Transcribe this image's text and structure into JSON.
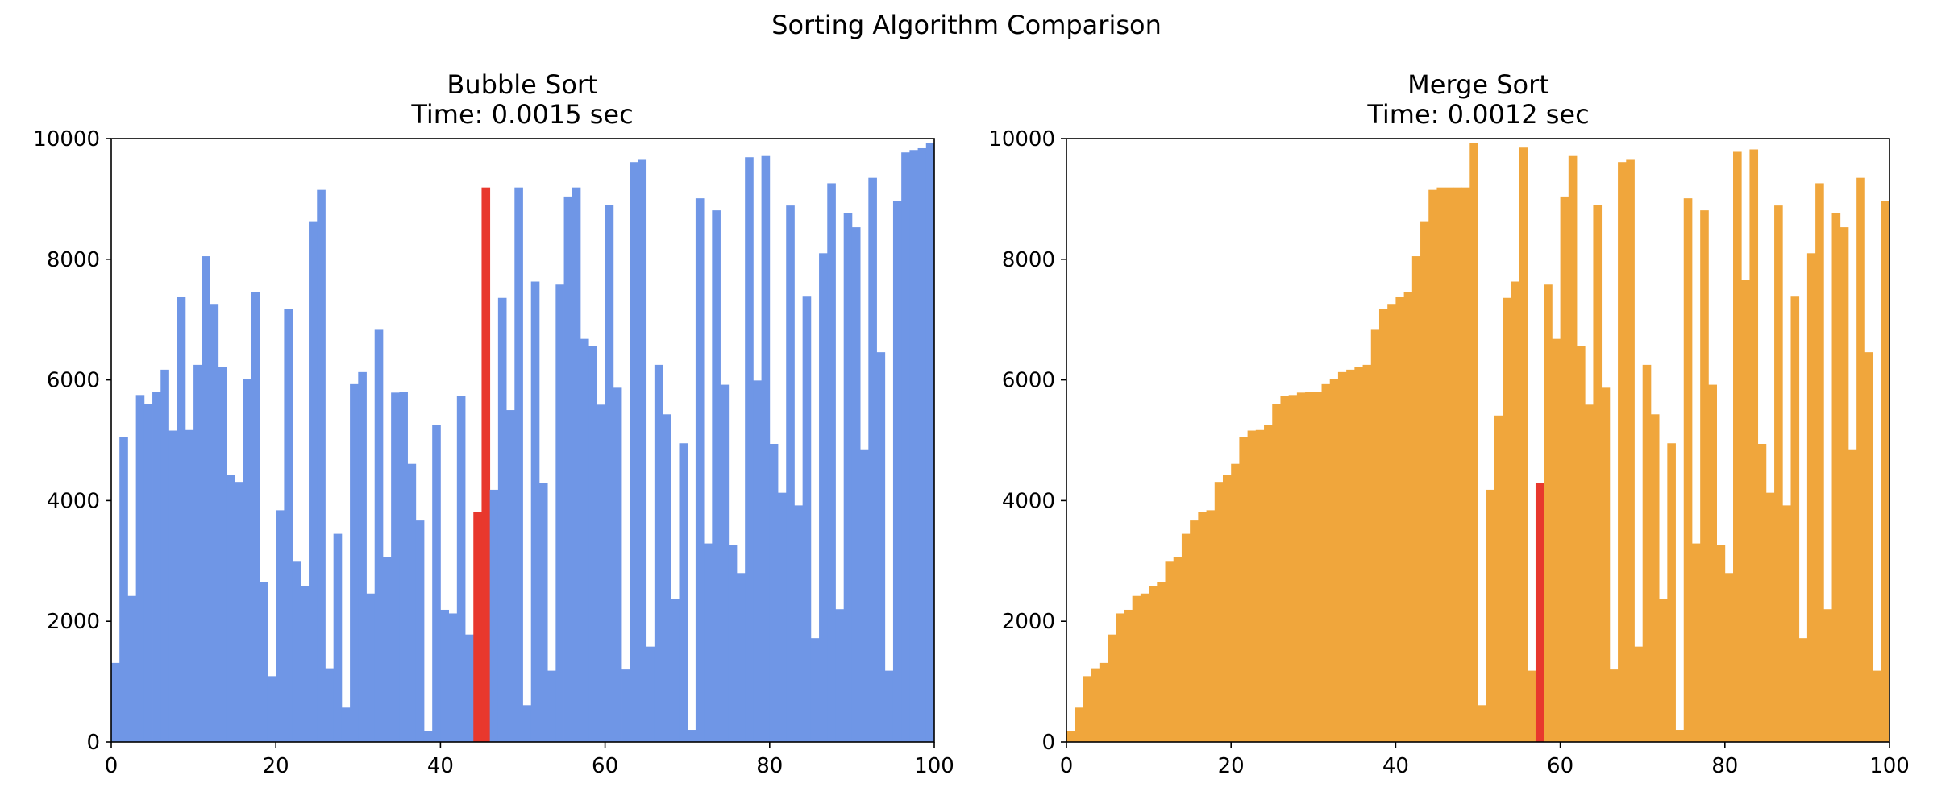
{
  "figure": {
    "suptitle": "Sorting Algorithm Comparison"
  },
  "colors": {
    "bubble": "#6f96e6",
    "merge": "#f0a63c",
    "highlight": "#e8382d"
  },
  "chart_data": [
    {
      "type": "bar",
      "title": "Bubble Sort",
      "subtitle": "Time: 0.0015 sec",
      "xlim": [
        0,
        100
      ],
      "ylim": [
        0,
        10000
      ],
      "xticks": [
        0,
        20,
        40,
        60,
        80,
        100
      ],
      "yticks": [
        0,
        2000,
        4000,
        6000,
        8000,
        10000
      ],
      "bar_color": "#6f96e6",
      "highlight_color": "#e8382d",
      "highlight_indices": [
        44,
        45
      ],
      "values": [
        1310,
        5050,
        2420,
        5750,
        5600,
        5800,
        6170,
        5160,
        7370,
        5170,
        6250,
        8050,
        7260,
        6210,
        4430,
        4310,
        6020,
        7460,
        2650,
        1090,
        3840,
        7180,
        3000,
        2590,
        8630,
        9150,
        1220,
        3450,
        570,
        5930,
        6130,
        2460,
        6830,
        3070,
        5790,
        5800,
        4610,
        3670,
        180,
        5260,
        2190,
        2130,
        5740,
        1780,
        3810,
        9190,
        4180,
        7360,
        5500,
        9190,
        610,
        7630,
        4290,
        1180,
        7580,
        9040,
        9190,
        6680,
        6560,
        5590,
        8900,
        5870,
        1200,
        9610,
        9660,
        1580,
        6250,
        5430,
        2370,
        4950,
        200,
        9010,
        3290,
        8810,
        5920,
        3270,
        2800,
        9690,
        5990,
        9710,
        4940,
        4130,
        8890,
        3920,
        7380,
        1720,
        8100,
        9260,
        2200,
        8770,
        8530,
        4850,
        9350,
        6460,
        1180,
        8970,
        9770,
        9810,
        9840,
        9930
      ]
    },
    {
      "type": "bar",
      "title": "Merge Sort",
      "subtitle": "Time: 0.0012 sec",
      "xlim": [
        0,
        100
      ],
      "ylim": [
        0,
        10000
      ],
      "xticks": [
        0,
        20,
        40,
        60,
        80,
        100
      ],
      "yticks": [
        0,
        2000,
        4000,
        6000,
        8000,
        10000
      ],
      "bar_color": "#f0a63c",
      "highlight_color": "#e8382d",
      "highlight_indices": [
        57
      ],
      "values": [
        180,
        570,
        1090,
        1220,
        1310,
        1780,
        2130,
        2190,
        2420,
        2460,
        2590,
        2650,
        3000,
        3070,
        3450,
        3670,
        3810,
        3840,
        4310,
        4430,
        4610,
        5050,
        5160,
        5170,
        5260,
        5600,
        5740,
        5750,
        5790,
        5800,
        5800,
        5930,
        6020,
        6130,
        6170,
        6210,
        6250,
        6830,
        7180,
        7260,
        7370,
        7460,
        8050,
        8630,
        9150,
        9190,
        9190,
        9190,
        9190,
        9930,
        610,
        4180,
        5410,
        7360,
        7630,
        9850,
        1180,
        4290,
        7580,
        6680,
        9040,
        9710,
        6560,
        5590,
        8900,
        5870,
        1200,
        9610,
        9660,
        1580,
        6250,
        5430,
        2370,
        4950,
        200,
        9010,
        3290,
        8810,
        5920,
        3270,
        2800,
        9780,
        7660,
        9820,
        4940,
        4130,
        8890,
        3920,
        7380,
        1720,
        8100,
        9260,
        2200,
        8770,
        8530,
        4850,
        9350,
        6460,
        1180,
        8970
      ]
    }
  ]
}
